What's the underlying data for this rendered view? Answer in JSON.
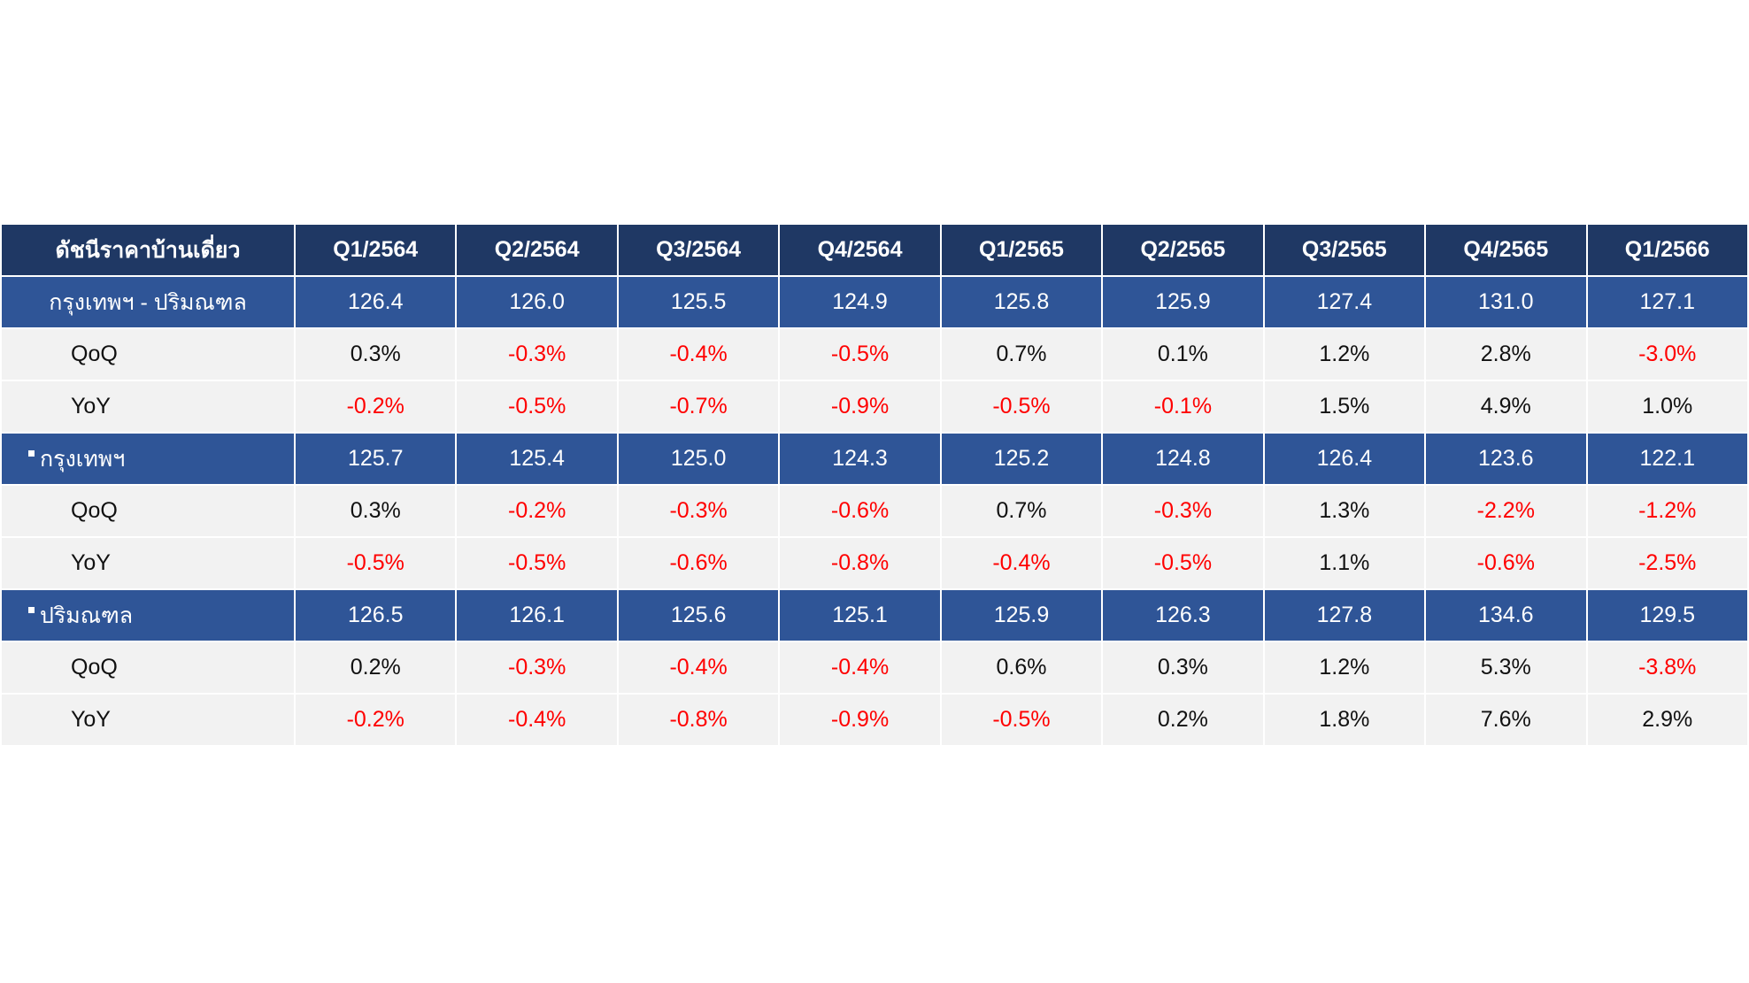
{
  "chart_data": {
    "type": "table",
    "title": "ดัชนีราคาบ้านเดี่ยว",
    "columns": [
      "Q1/2564",
      "Q2/2564",
      "Q3/2564",
      "Q4/2564",
      "Q1/2565",
      "Q2/2565",
      "Q3/2565",
      "Q4/2565",
      "Q1/2566"
    ],
    "groups": [
      {
        "name": "กรุงเทพฯ - ปริมณฑล",
        "index": [
          "126.4",
          "126.0",
          "125.5",
          "124.9",
          "125.8",
          "125.9",
          "127.4",
          "131.0",
          "127.1"
        ],
        "qoq_label": "QoQ",
        "qoq": [
          "0.3%",
          "-0.3%",
          "-0.4%",
          "-0.5%",
          "0.7%",
          "0.1%",
          "1.2%",
          "2.8%",
          "-3.0%"
        ],
        "yoy_label": "YoY",
        "yoy": [
          "-0.2%",
          "-0.5%",
          "-0.7%",
          "-0.9%",
          "-0.5%",
          "-0.1%",
          "1.5%",
          "4.9%",
          "1.0%"
        ]
      },
      {
        "name": "กรุงเทพฯ",
        "index": [
          "125.7",
          "125.4",
          "125.0",
          "124.3",
          "125.2",
          "124.8",
          "126.4",
          "123.6",
          "122.1"
        ],
        "qoq_label": "QoQ",
        "qoq": [
          "0.3%",
          "-0.2%",
          "-0.3%",
          "-0.6%",
          "0.7%",
          "-0.3%",
          "1.3%",
          "-2.2%",
          "-1.2%"
        ],
        "yoy_label": "YoY",
        "yoy": [
          "-0.5%",
          "-0.5%",
          "-0.6%",
          "-0.8%",
          "-0.4%",
          "-0.5%",
          "1.1%",
          "-0.6%",
          "-2.5%"
        ]
      },
      {
        "name": "ปริมณฑล",
        "index": [
          "126.5",
          "126.1",
          "125.6",
          "125.1",
          "125.9",
          "126.3",
          "127.8",
          "134.6",
          "129.5"
        ],
        "qoq_label": "QoQ",
        "qoq": [
          "0.2%",
          "-0.3%",
          "-0.4%",
          "-0.4%",
          "0.6%",
          "0.3%",
          "1.2%",
          "5.3%",
          "-3.8%"
        ],
        "yoy_label": "YoY",
        "yoy": [
          "-0.2%",
          "-0.4%",
          "-0.8%",
          "-0.9%",
          "-0.5%",
          "0.2%",
          "1.8%",
          "7.6%",
          "2.9%"
        ]
      }
    ]
  },
  "colors": {
    "header_bg": "#1f3864",
    "group_bg": "#2f5597",
    "sub_bg": "#f2f2f2",
    "negative_text": "#ff0000",
    "text_dark": "#111111"
  }
}
